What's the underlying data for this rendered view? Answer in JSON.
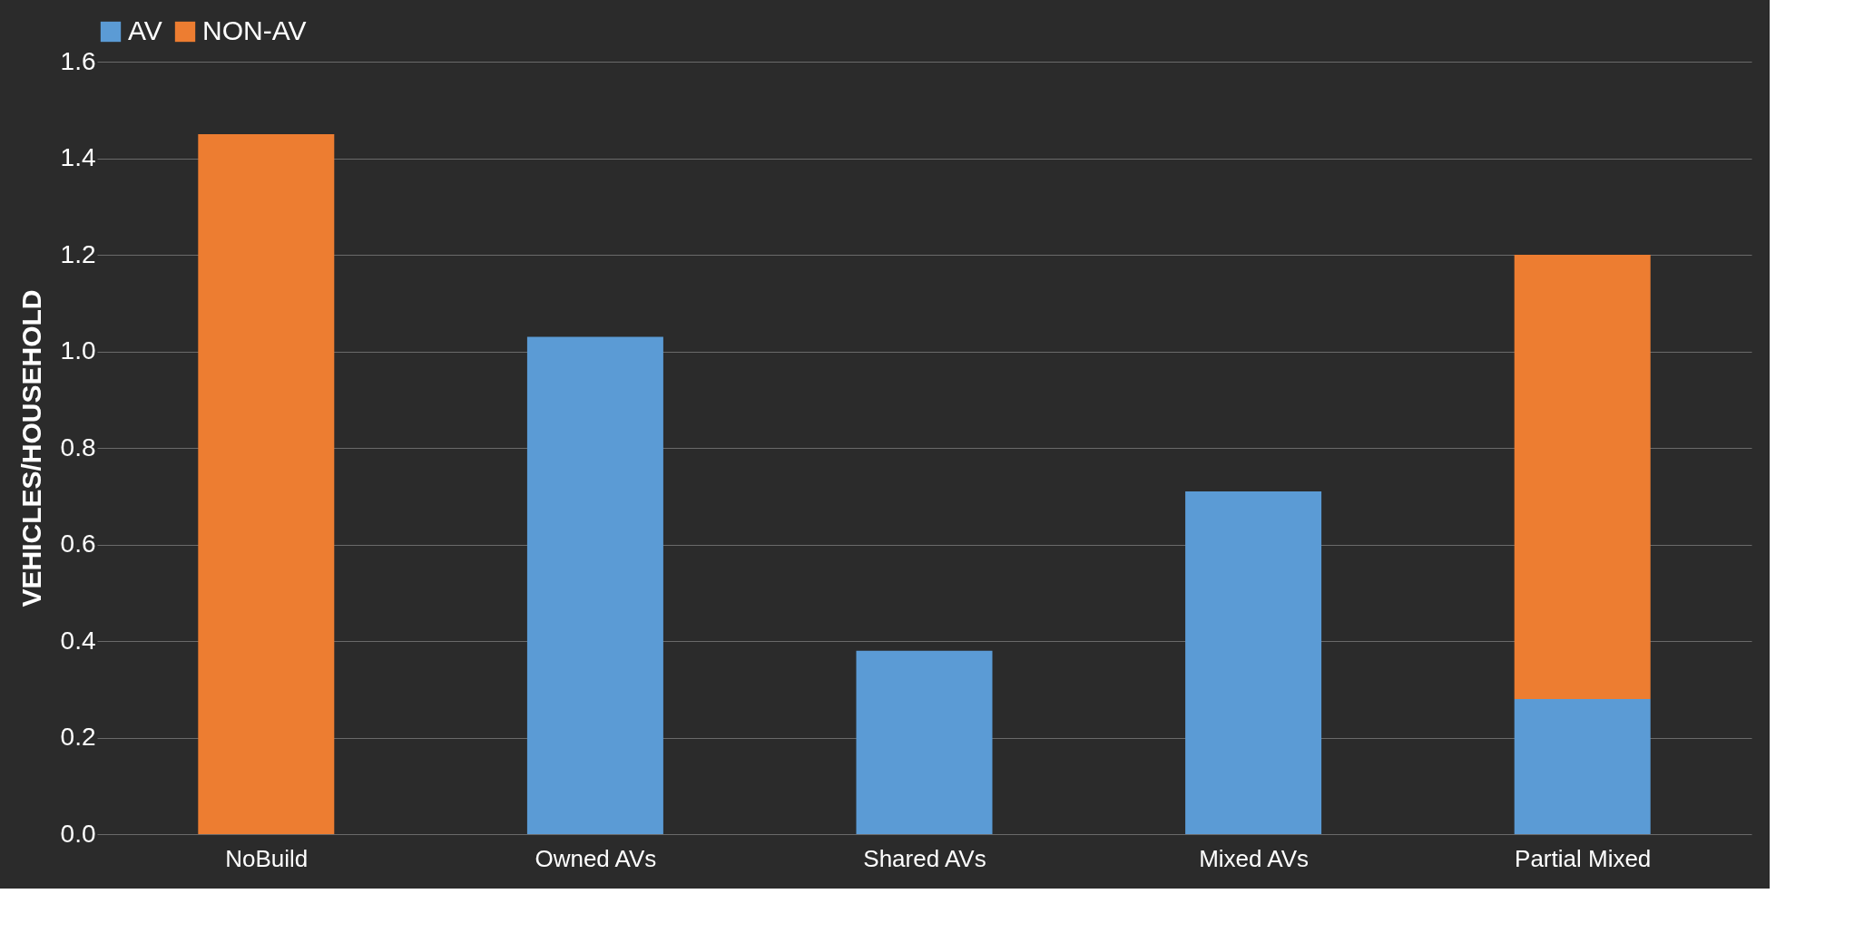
{
  "chart_data": {
    "type": "bar",
    "stacked": true,
    "ylabel": "VEHICLES/HOUSEHOLD",
    "categories": [
      "NoBuild",
      "Owned AVs",
      "Shared AVs",
      "Mixed AVs",
      "Partial Mixed"
    ],
    "series": [
      {
        "name": "AV",
        "color": "#5b9bd5",
        "values": [
          null,
          1.03,
          0.38,
          0.71,
          0.28
        ]
      },
      {
        "name": "NON-AV",
        "color": "#ed7d31",
        "values": [
          1.45,
          null,
          null,
          null,
          0.92
        ]
      }
    ],
    "ylim": [
      0,
      1.6
    ],
    "yticks": [
      {
        "value": 0,
        "label": "0.0"
      },
      {
        "value": 0.2,
        "label": "0.2"
      },
      {
        "value": 0.4,
        "label": "0.4"
      },
      {
        "value": 0.6,
        "label": "0.6"
      },
      {
        "value": 0.8,
        "label": "0.8"
      },
      {
        "value": 1,
        "label": "1.0"
      },
      {
        "value": 1.2,
        "label": "1.2"
      },
      {
        "value": 1.4,
        "label": "1.4"
      },
      {
        "value": 1.6,
        "label": "1.6"
      }
    ],
    "grid": "y",
    "legend": "top"
  }
}
